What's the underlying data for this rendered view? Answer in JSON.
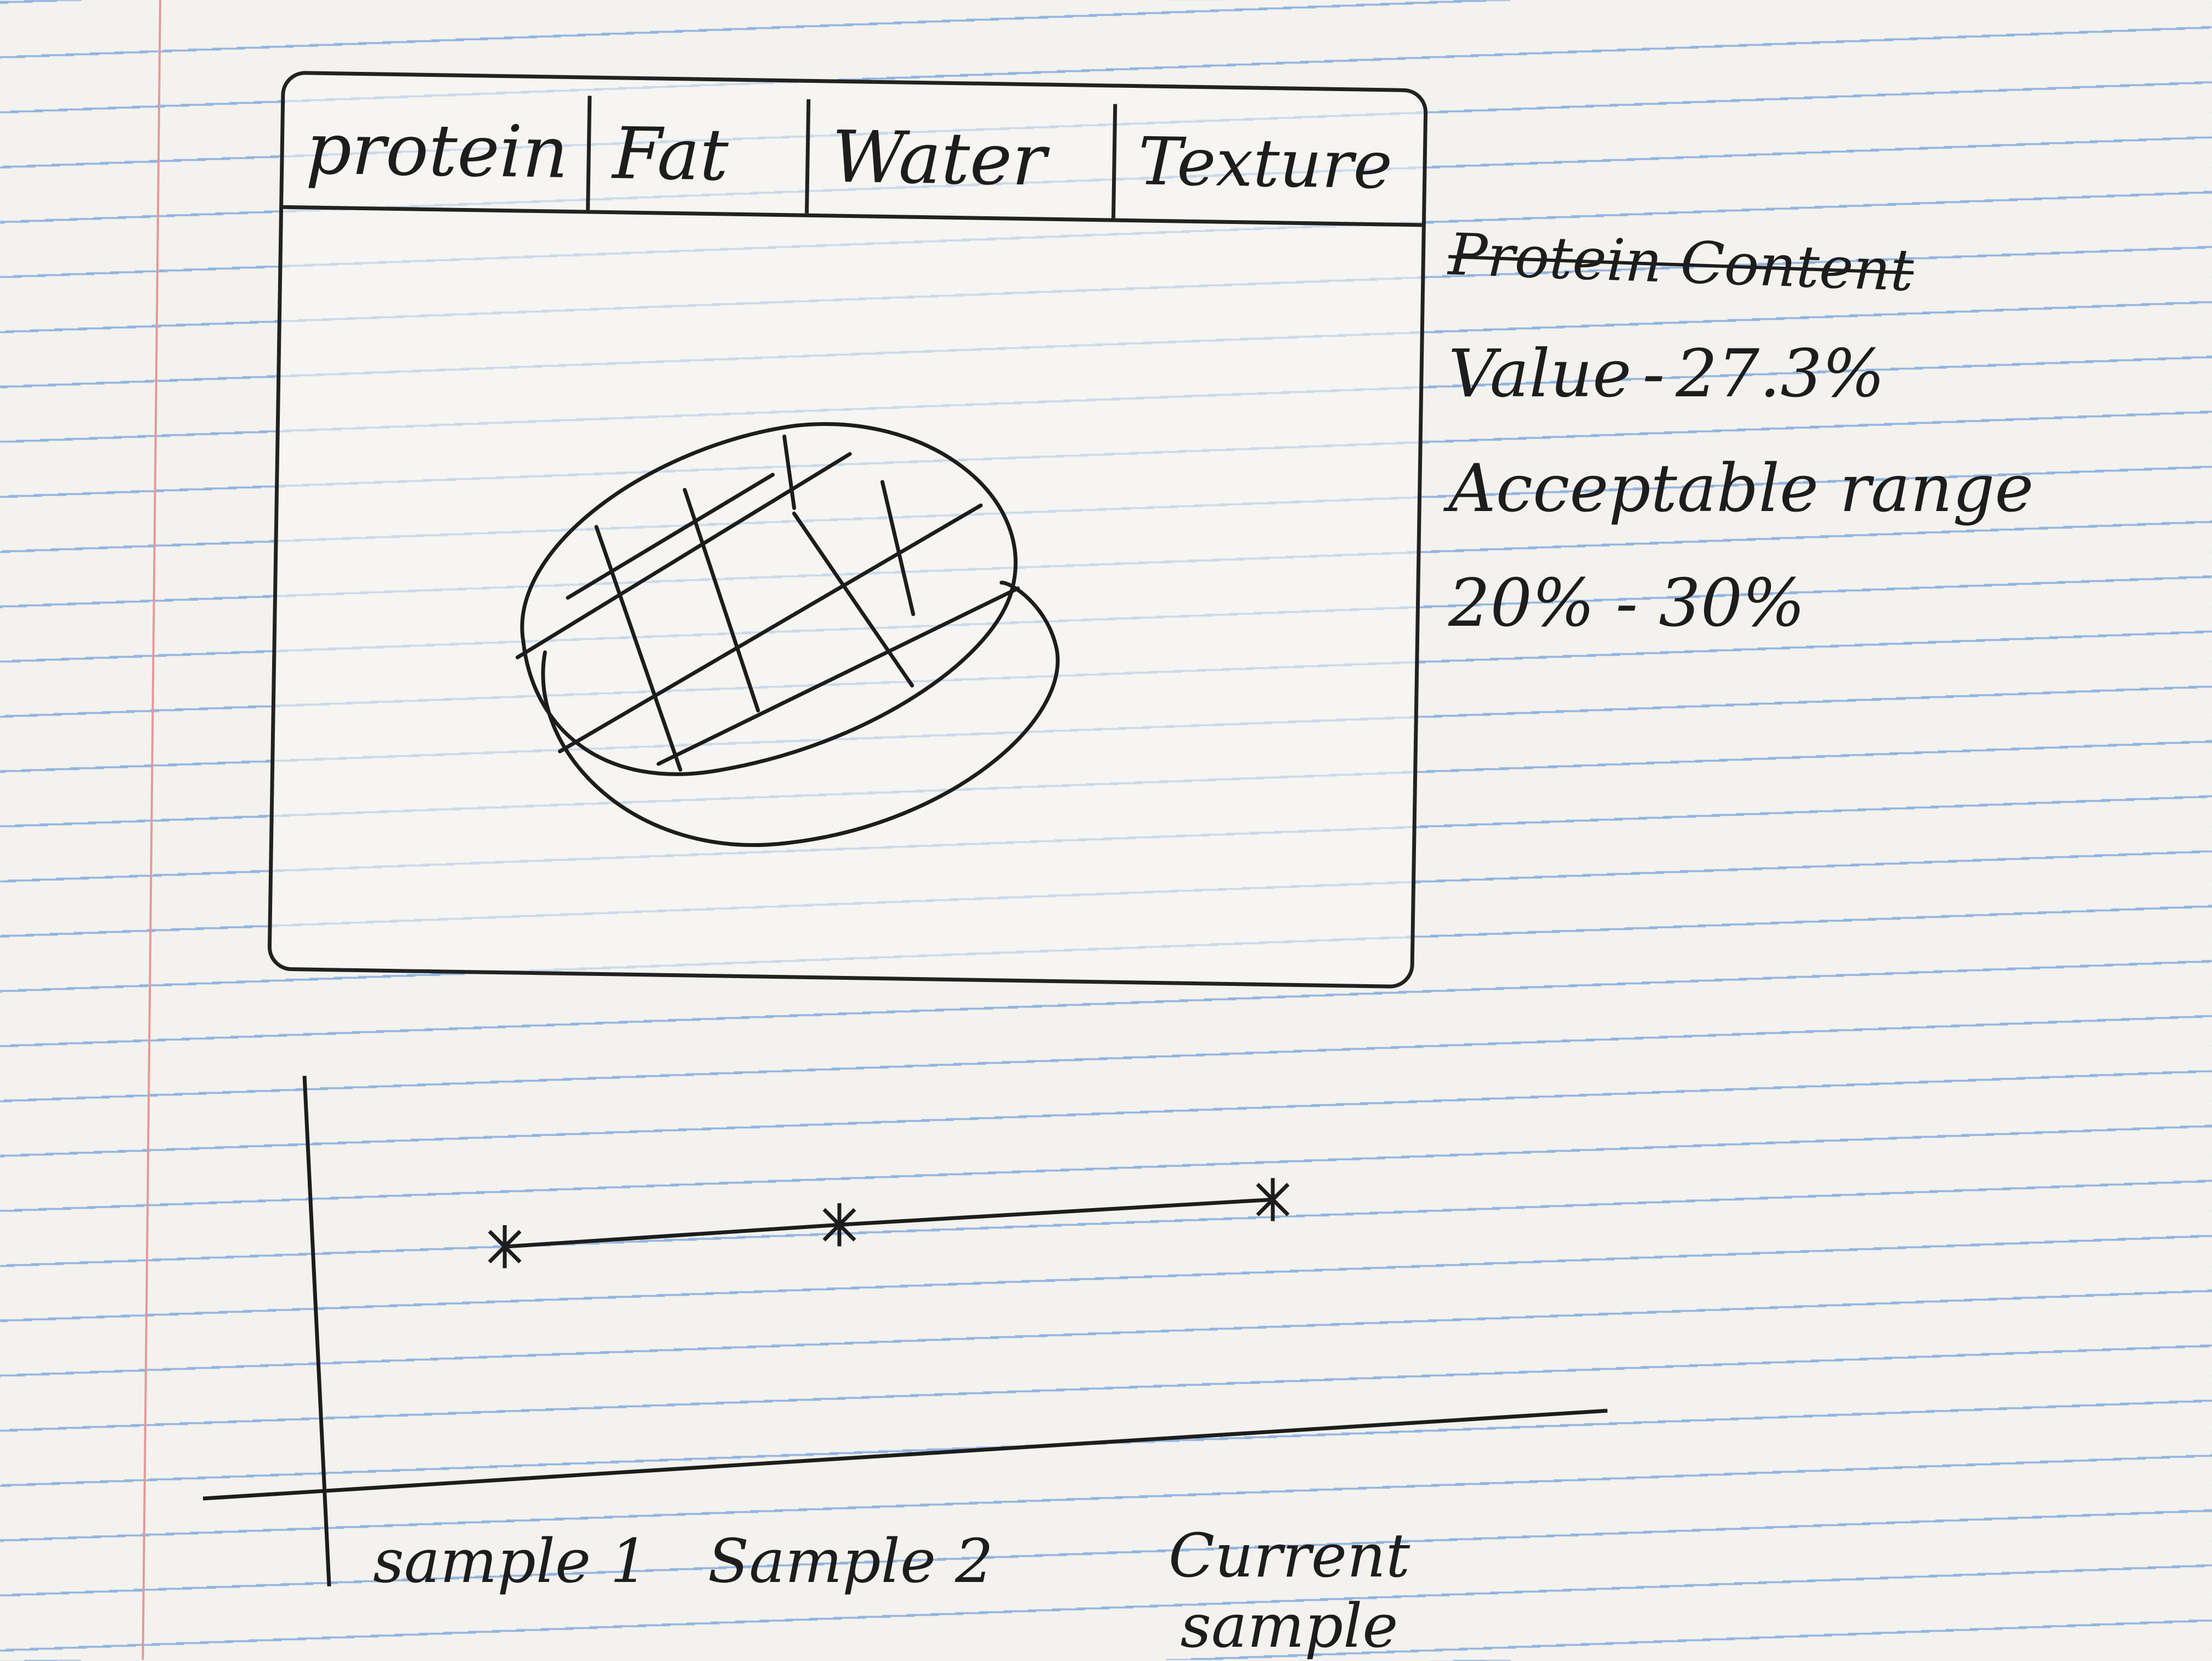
{
  "tabs": [
    {
      "label": "protein"
    },
    {
      "label": "Fat"
    },
    {
      "label": "Water"
    },
    {
      "label": "Texture"
    }
  ],
  "viewer": {
    "image": "meat-sample-illustration"
  },
  "info": {
    "title": "Protein Content",
    "value_label": "Value",
    "value": "27.3%",
    "range_label": "Acceptable range",
    "range": "20% - 30%"
  },
  "chart_data": {
    "type": "line",
    "categories": [
      "sample 1",
      "Sample 2",
      "Current sample"
    ],
    "series": [
      {
        "values": [
          23,
          25,
          27.3
        ]
      }
    ],
    "ylim": [
      0,
      30
    ],
    "grid": false
  },
  "colors": {
    "ink": "#1d1d1d",
    "paper": "#f4f2ee",
    "rule_line": "#8fb3de",
    "margin_line": "#e39a9a"
  }
}
